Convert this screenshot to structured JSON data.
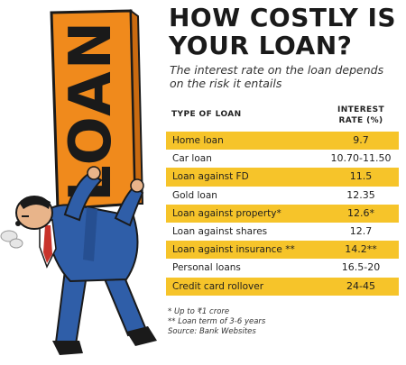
{
  "headline": [
    "HOW COSTLY IS",
    "YOUR LOAN?"
  ],
  "subtitle": [
    "The interest rate on the loan depends",
    "on the risk it entails"
  ],
  "columns": {
    "type": "TYPE OF LOAN",
    "rate_line1": "INTEREST",
    "rate_line2": "RATE (%)"
  },
  "rows": [
    {
      "type": "Home loan",
      "rate": "9.7"
    },
    {
      "type": "Car loan",
      "rate": "10.70-11.50"
    },
    {
      "type": "Loan against FD",
      "rate": "11.5"
    },
    {
      "type": "Gold loan",
      "rate": "12.35"
    },
    {
      "type": "Loan against property*",
      "rate": "12.6*"
    },
    {
      "type": "Loan against shares",
      "rate": "12.7"
    },
    {
      "type": "Loan against insurance **",
      "rate": "14.2**"
    },
    {
      "type": "Personal loans",
      "rate": "16.5-20"
    },
    {
      "type": "Credit card rollover",
      "rate": "24-45"
    }
  ],
  "footnotes": [
    "* Up to ₹1 crore",
    "** Loan term of 3-6 years",
    "Source: Bank Websites"
  ],
  "sign_text": "LOAN",
  "colors": {
    "highlight": "#f6c42a",
    "sign": "#f08a1c",
    "suit": "#2f5ea8"
  }
}
